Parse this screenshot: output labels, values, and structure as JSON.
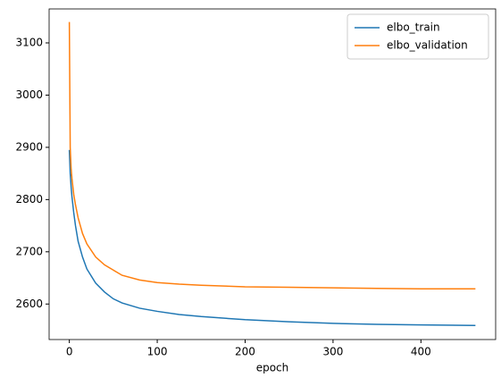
{
  "chart_data": {
    "type": "line",
    "xlabel": "epoch",
    "x": [
      0,
      1,
      2,
      3,
      5,
      7,
      10,
      15,
      20,
      30,
      40,
      50,
      60,
      80,
      100,
      125,
      150,
      200,
      250,
      300,
      350,
      400,
      462
    ],
    "series": [
      {
        "name": "elbo_train",
        "color": "#1f77b4",
        "values": [
          2895,
          2850,
          2825,
          2805,
          2775,
          2750,
          2720,
          2690,
          2667,
          2640,
          2623,
          2610,
          2602,
          2592,
          2586,
          2580,
          2576,
          2570,
          2566,
          2563,
          2561,
          2560,
          2559
        ]
      },
      {
        "name": "elbo_validation",
        "color": "#ff7f0e",
        "values": [
          3140,
          2900,
          2860,
          2840,
          2810,
          2790,
          2765,
          2735,
          2715,
          2690,
          2675,
          2665,
          2655,
          2646,
          2641,
          2638,
          2636,
          2633,
          2632,
          2631,
          2630,
          2629,
          2629
        ]
      }
    ],
    "xlim": [
      -23,
      485
    ],
    "ylim": [
      2532,
      3165
    ],
    "xticks": [
      0,
      100,
      200,
      300,
      400
    ],
    "yticks": [
      2600,
      2700,
      2800,
      2900,
      3000,
      3100
    ],
    "legend": "upper right"
  }
}
